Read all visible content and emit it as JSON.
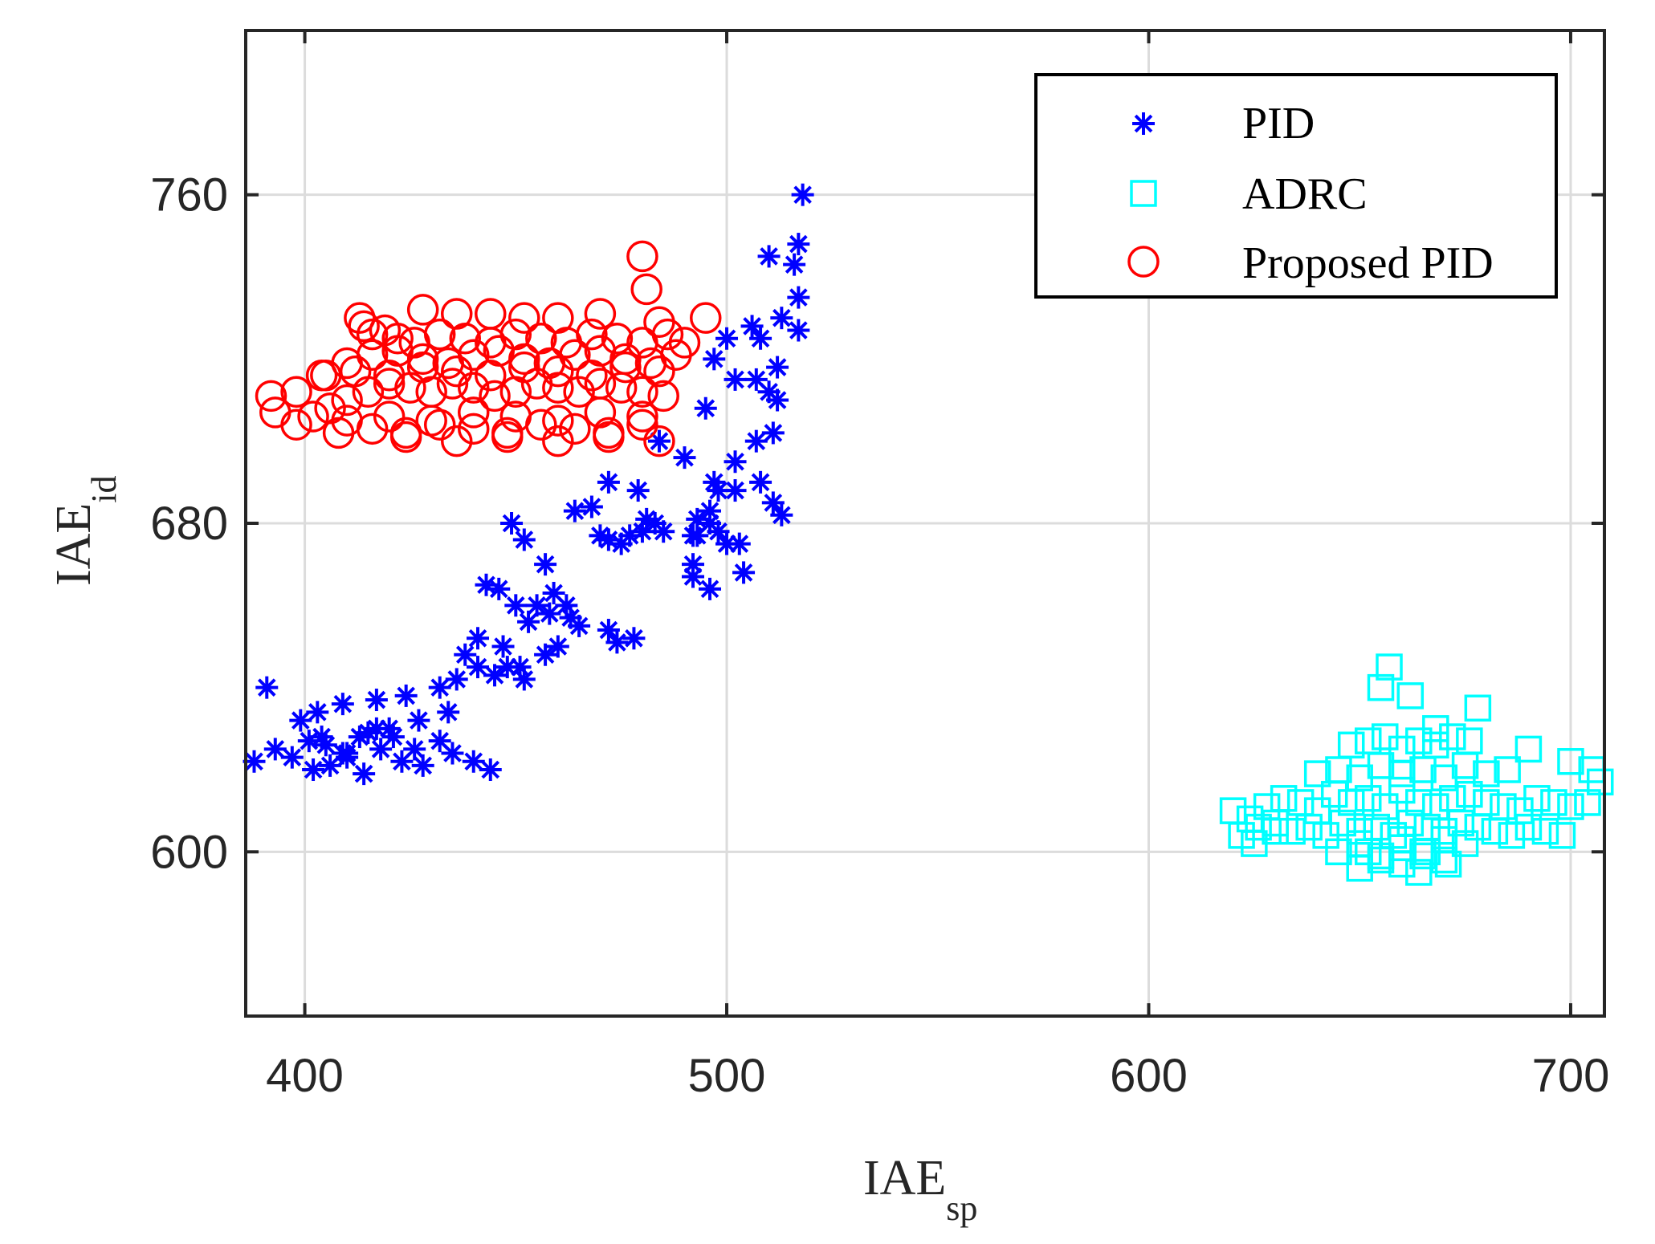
{
  "chart_data": {
    "type": "scatter",
    "title": "",
    "xlabel": "IAE",
    "xlabel_sub": "sp",
    "ylabel": "IAE",
    "ylabel_sub": "id",
    "xlim": [
      386,
      708
    ],
    "ylim": [
      560,
      800
    ],
    "xticks": [
      400,
      500,
      600,
      700
    ],
    "xtick_labels": [
      "400",
      "500",
      "600",
      "700"
    ],
    "yticks": [
      600,
      680,
      760
    ],
    "ytick_labels": [
      "600",
      "680",
      "760"
    ],
    "grid": true,
    "legend_position": "top-right",
    "series": [
      {
        "name": "PID",
        "marker": "asterisk",
        "color": "#0000ff",
        "x": [
          518,
          517,
          516,
          510,
          513,
          506,
          508,
          517,
          517,
          500,
          497,
          502,
          512,
          507,
          510,
          512,
          495,
          502,
          507,
          511,
          484,
          490,
          497,
          468,
          472,
          479,
          481,
          493,
          496,
          498,
          502,
          492,
          508,
          511,
          513,
          496,
          500,
          492,
          504,
          483,
          477,
          492,
          496,
          457,
          449,
          452,
          464,
          472,
          480,
          470,
          475,
          485,
          493,
          498,
          503,
          478,
          472,
          474,
          455,
          443,
          446,
          450,
          459,
          462,
          465,
          438,
          441,
          447,
          453,
          458,
          463,
          448,
          452,
          457,
          460,
          391,
          399,
          403,
          409,
          417,
          424,
          432,
          436,
          441,
          445,
          451,
          404,
          410,
          415,
          420,
          427,
          434,
          388,
          393,
          397,
          401,
          405,
          409,
          413,
          417,
          421,
          426,
          432,
          402,
          406,
          410,
          414,
          418,
          423,
          428,
          435,
          440,
          444
        ],
        "y": [
          760,
          748,
          743,
          745,
          730,
          728,
          725,
          735,
          727,
          725,
          720,
          715,
          718,
          715,
          712,
          710,
          708,
          695,
          700,
          702,
          700,
          696,
          690,
          684,
          690,
          688,
          681,
          681,
          683,
          688,
          688,
          677,
          690,
          685,
          682,
          680,
          675,
          667,
          668,
          680,
          677,
          670,
          664,
          670,
          680,
          676,
          683,
          676,
          678,
          677,
          675,
          678,
          677,
          678,
          675,
          652,
          654,
          651,
          660,
          665,
          664,
          660,
          663,
          660,
          655,
          648,
          652,
          650,
          656,
          658,
          657,
          645,
          642,
          648,
          650,
          640,
          632,
          634,
          636,
          637,
          638,
          640,
          642,
          645,
          643,
          645,
          628,
          624,
          629,
          630,
          632,
          634,
          622,
          625,
          623,
          627,
          626,
          624,
          628,
          630,
          628,
          625,
          627,
          620,
          621,
          623,
          619,
          625,
          622,
          621,
          624,
          622,
          620
        ]
      },
      {
        "name": "ADRC",
        "marker": "square",
        "color": "#00ffff",
        "x": [
          620,
          624,
          628,
          632,
          636,
          640,
          644,
          648,
          652,
          656,
          660,
          664,
          668,
          672,
          676,
          680,
          684,
          688,
          692,
          696,
          700,
          704,
          622,
          626,
          630,
          634,
          638,
          642,
          646,
          650,
          654,
          658,
          662,
          666,
          670,
          674,
          678,
          682,
          686,
          690,
          694,
          698,
          640,
          645,
          650,
          655,
          660,
          665,
          670,
          675,
          680,
          685,
          648,
          652,
          656,
          660,
          664,
          668,
          672,
          676,
          645,
          650,
          655,
          660,
          665,
          670,
          675,
          650,
          655,
          660,
          665,
          670,
          655,
          657,
          662,
          668,
          678,
          690,
          705,
          707,
          700,
          625,
          630,
          660,
          666,
          671,
          652,
          664
        ],
        "y": [
          610,
          608,
          611,
          613,
          612,
          610,
          614,
          612,
          613,
          611,
          615,
          612,
          611,
          613,
          614,
          612,
          611,
          610,
          613,
          612,
          611,
          612,
          604,
          606,
          607,
          605,
          606,
          604,
          607,
          605,
          606,
          604,
          607,
          606,
          605,
          607,
          606,
          605,
          604,
          606,
          605,
          604,
          619,
          620,
          618,
          621,
          619,
          620,
          618,
          621,
          619,
          620,
          626,
          627,
          628,
          625,
          627,
          626,
          628,
          627,
          600,
          602,
          599,
          601,
          600,
          603,
          602,
          596,
          598,
          597,
          599,
          598,
          640,
          645,
          638,
          630,
          635,
          625,
          620,
          617,
          622,
          602,
          605,
          603,
          600,
          597,
          600,
          595
        ]
      },
      {
        "name": "Proposed PID",
        "marker": "circle",
        "color": "#ff0000",
        "x": [
          480,
          481,
          413,
          428,
          436,
          444,
          452,
          460,
          470,
          484,
          495,
          414,
          416,
          419,
          422,
          426,
          432,
          438,
          444,
          450,
          456,
          462,
          468,
          474,
          480,
          486,
          490,
          392,
          398,
          404,
          410,
          416,
          422,
          428,
          434,
          440,
          446,
          452,
          458,
          464,
          470,
          476,
          482,
          488,
          393,
          398,
          402,
          406,
          410,
          415,
          420,
          425,
          430,
          435,
          440,
          445,
          450,
          455,
          460,
          465,
          470,
          475,
          480,
          485,
          408,
          416,
          424,
          432,
          440,
          448,
          456,
          464,
          472,
          480,
          405,
          412,
          420,
          428,
          436,
          444,
          452,
          460,
          468,
          476,
          484,
          410,
          420,
          430,
          440,
          450,
          460,
          470,
          480,
          424,
          436,
          448,
          460,
          472,
          484
        ],
        "y": [
          745,
          737,
          730,
          732,
          731,
          731,
          730,
          730,
          731,
          729,
          730,
          728,
          726,
          727,
          725,
          724,
          726,
          725,
          724,
          726,
          725,
          724,
          726,
          725,
          724,
          726,
          724,
          711,
          712,
          716,
          719,
          721,
          722,
          720,
          719,
          721,
          722,
          720,
          719,
          721,
          722,
          720,
          719,
          721,
          707,
          704,
          706,
          708,
          710,
          712,
          714,
          713,
          712,
          714,
          713,
          711,
          712,
          714,
          713,
          712,
          714,
          713,
          712,
          711,
          702,
          703,
          702,
          704,
          703,
          702,
          704,
          703,
          702,
          704,
          716,
          717,
          716,
          718,
          717,
          716,
          718,
          717,
          716,
          718,
          717,
          705,
          706,
          705,
          707,
          706,
          705,
          707,
          706,
          701,
          700,
          701,
          700,
          701,
          700
        ]
      }
    ]
  }
}
